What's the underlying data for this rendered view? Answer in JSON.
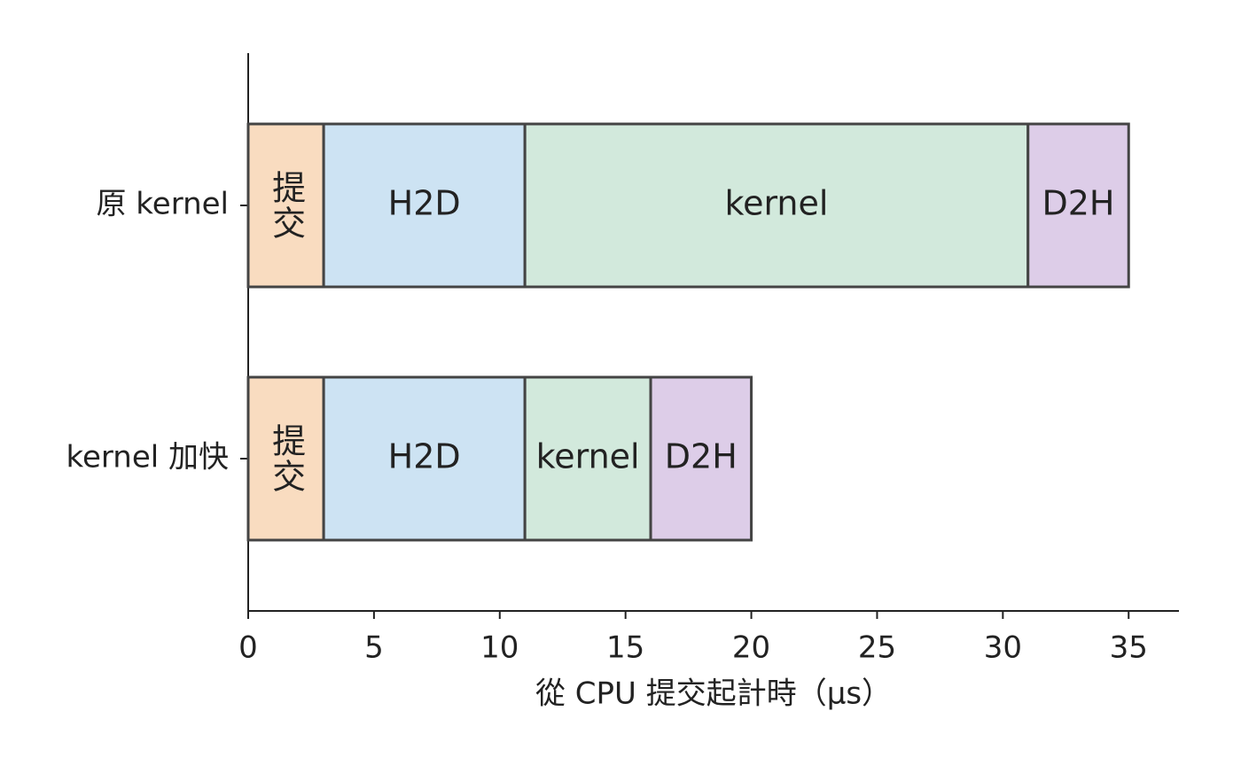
{
  "chart_data": {
    "type": "stacked-barh",
    "categories": [
      "原 kernel",
      "kernel 加快"
    ],
    "series": [
      {
        "name": "提交",
        "color": "#f9dcc0",
        "values": [
          3,
          3
        ]
      },
      {
        "name": "H2D",
        "color": "#cde3f3",
        "values": [
          8,
          8
        ]
      },
      {
        "name": "kernel",
        "color": "#d2e9dc",
        "values": [
          20,
          5
        ]
      },
      {
        "name": "D2H",
        "color": "#ddcde8",
        "values": [
          4,
          4
        ]
      }
    ],
    "xlabel": "從 CPU 提交起計時（μs）",
    "xlim": [
      0,
      37
    ],
    "xticks": [
      0,
      5,
      10,
      15,
      20,
      25,
      30,
      35
    ]
  }
}
